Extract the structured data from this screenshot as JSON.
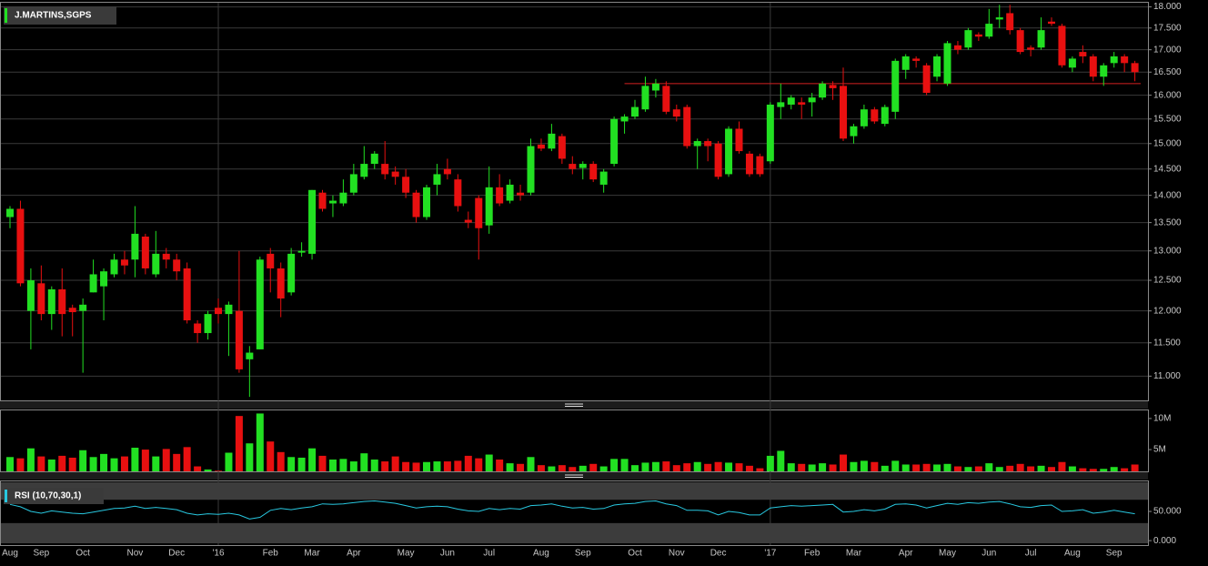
{
  "chart_data": [
    {
      "type": "candlestick",
      "title": "J.MARTINS,SGPS",
      "log_scale": true,
      "ylim": [
        10.65,
        18.1
      ],
      "yticks": [
        {
          "value": 11,
          "label": "11.000"
        },
        {
          "value": 11.5,
          "label": "11.500"
        },
        {
          "value": 12,
          "label": "12.000"
        },
        {
          "value": 12.5,
          "label": "12.500"
        },
        {
          "value": 13,
          "label": "13.000"
        },
        {
          "value": 13.5,
          "label": "13.500"
        },
        {
          "value": 14,
          "label": "14.000"
        },
        {
          "value": 14.5,
          "label": "14.500"
        },
        {
          "value": 15,
          "label": "15.000"
        },
        {
          "value": 15.5,
          "label": "15.500"
        },
        {
          "value": 16,
          "label": "16.000"
        },
        {
          "value": 16.5,
          "label": "16.500"
        },
        {
          "value": 17,
          "label": "17.000"
        },
        {
          "value": 17.5,
          "label": "17.500"
        },
        {
          "value": 18,
          "label": "18.000"
        }
      ],
      "grid": true,
      "year_lines": true,
      "up_color": "#22e022",
      "down_color": "#e81010",
      "support_line": {
        "value": 16.25,
        "start_index": 59,
        "color": "#d42020"
      },
      "categories": [
        "Aug",
        null,
        null,
        "Sep",
        null,
        null,
        null,
        "Oct",
        null,
        null,
        null,
        null,
        "Nov",
        null,
        null,
        null,
        "Dec",
        null,
        null,
        null,
        "'16",
        null,
        null,
        null,
        null,
        "Feb",
        null,
        null,
        null,
        "Mar",
        null,
        null,
        null,
        "Apr",
        null,
        null,
        null,
        null,
        "May",
        null,
        null,
        null,
        "Jun",
        null,
        null,
        null,
        "Jul",
        null,
        null,
        null,
        null,
        "Aug",
        null,
        null,
        null,
        "Sep",
        null,
        null,
        null,
        null,
        "Oct",
        null,
        null,
        null,
        "Nov",
        null,
        null,
        null,
        "Dec",
        null,
        null,
        null,
        null,
        "'17",
        null,
        null,
        null,
        "Feb",
        null,
        null,
        null,
        "Mar",
        null,
        null,
        null,
        null,
        "Apr",
        null,
        null,
        null,
        "May",
        null,
        null,
        null,
        "Jun",
        null,
        null,
        null,
        "Jul",
        null,
        null,
        null,
        "Aug",
        null,
        null,
        null,
        "Sep",
        null,
        null
      ],
      "open": [
        13.6,
        13.75,
        12.0,
        12.45,
        11.95,
        12.35,
        12.05,
        12.0,
        12.3,
        12.4,
        12.6,
        12.85,
        12.85,
        13.25,
        12.6,
        12.95,
        12.85,
        12.7,
        11.8,
        11.65,
        12.05,
        11.95,
        12.0,
        11.25,
        11.4,
        12.95,
        12.7,
        12.3,
        12.97,
        12.95,
        14.05,
        13.85,
        13.85,
        14.05,
        14.35,
        14.6,
        14.6,
        14.45,
        14.35,
        14.05,
        13.6,
        14.2,
        14.5,
        14.3,
        13.55,
        13.95,
        13.45,
        14.15,
        13.9,
        14.05,
        14.05,
        14.98,
        14.9,
        15.15,
        14.6,
        14.52,
        14.6,
        14.2,
        14.6,
        15.45,
        15.55,
        15.7,
        16.1,
        16.2,
        15.7,
        15.75,
        14.95,
        15.05,
        15.0,
        14.4,
        15.3,
        14.8,
        14.75,
        14.65,
        15.75,
        15.8,
        15.85,
        15.85,
        15.95,
        16.22,
        16.2,
        15.15,
        15.35,
        15.7,
        15.4,
        15.65,
        16.55,
        16.8,
        16.65,
        16.4,
        16.25,
        17.1,
        17.05,
        17.35,
        17.3,
        17.7,
        17.85,
        17.45,
        17.05,
        17.05,
        17.65,
        17.55,
        16.6,
        16.95,
        16.85,
        16.4,
        16.7,
        16.85,
        16.7
      ],
      "high": [
        13.8,
        13.9,
        12.7,
        12.75,
        12.4,
        12.7,
        12.1,
        12.2,
        12.85,
        12.7,
        12.95,
        13.0,
        13.8,
        13.3,
        13.35,
        13.05,
        12.95,
        12.8,
        11.85,
        12.0,
        12.2,
        12.15,
        13.0,
        11.45,
        12.9,
        13.05,
        12.8,
        13.05,
        13.15,
        14.1,
        14.1,
        14.0,
        14.3,
        14.6,
        14.95,
        14.85,
        15.05,
        14.55,
        14.5,
        14.1,
        14.2,
        14.6,
        14.7,
        14.4,
        13.7,
        14.0,
        14.55,
        14.4,
        14.3,
        14.2,
        15.1,
        15.1,
        15.4,
        15.2,
        14.75,
        14.65,
        14.65,
        14.5,
        15.55,
        15.6,
        15.9,
        16.4,
        16.35,
        16.3,
        15.8,
        15.8,
        15.1,
        15.1,
        15.05,
        15.35,
        15.45,
        14.85,
        14.8,
        15.85,
        16.25,
        16.0,
        15.95,
        16.05,
        16.3,
        16.3,
        16.6,
        15.4,
        15.8,
        15.75,
        15.8,
        16.8,
        16.9,
        16.85,
        16.7,
        16.9,
        17.2,
        17.2,
        17.5,
        17.4,
        17.95,
        18.05,
        18.05,
        17.5,
        17.1,
        17.75,
        17.75,
        17.6,
        16.85,
        17.1,
        16.9,
        16.7,
        16.95,
        16.9,
        16.75
      ],
      "low": [
        13.4,
        12.4,
        11.4,
        11.85,
        11.7,
        11.6,
        11.6,
        11.05,
        12.3,
        11.85,
        12.55,
        12.6,
        12.55,
        12.6,
        12.55,
        12.7,
        12.5,
        11.8,
        11.5,
        11.55,
        11.8,
        11.3,
        11.05,
        10.7,
        11.4,
        12.3,
        11.9,
        12.25,
        12.9,
        12.85,
        13.7,
        13.6,
        13.8,
        14.0,
        14.3,
        14.5,
        14.3,
        14.2,
        13.95,
        13.5,
        13.55,
        14.0,
        14.3,
        13.7,
        13.4,
        12.85,
        13.3,
        13.8,
        13.85,
        13.9,
        14.0,
        14.85,
        14.85,
        14.6,
        14.4,
        14.3,
        14.25,
        14.05,
        14.55,
        15.2,
        15.5,
        15.65,
        15.95,
        15.6,
        15.45,
        14.9,
        14.5,
        14.65,
        14.3,
        14.35,
        14.8,
        14.35,
        14.35,
        14.6,
        15.5,
        15.7,
        15.5,
        15.55,
        15.9,
        15.9,
        15.05,
        15.0,
        15.3,
        15.4,
        15.35,
        15.5,
        16.35,
        16.6,
        16.0,
        16.3,
        16.2,
        16.9,
        17.0,
        17.2,
        17.25,
        17.5,
        17.35,
        16.9,
        16.85,
        17.0,
        17.55,
        16.6,
        16.5,
        16.7,
        16.3,
        16.2,
        16.6,
        16.5,
        16.3
      ],
      "close": [
        13.75,
        12.45,
        12.5,
        11.95,
        12.35,
        11.95,
        11.98,
        12.1,
        12.6,
        12.65,
        12.85,
        12.75,
        13.3,
        12.7,
        12.95,
        12.85,
        12.65,
        11.85,
        11.65,
        11.95,
        11.95,
        12.1,
        11.1,
        11.35,
        12.85,
        12.7,
        12.2,
        12.95,
        13.0,
        14.1,
        13.75,
        13.9,
        14.05,
        14.4,
        14.6,
        14.8,
        14.4,
        14.35,
        14.05,
        13.6,
        14.15,
        14.4,
        14.4,
        13.8,
        13.5,
        13.4,
        14.15,
        13.85,
        14.2,
        14.0,
        14.95,
        14.9,
        15.2,
        14.7,
        14.5,
        14.6,
        14.3,
        14.45,
        15.5,
        15.55,
        15.75,
        16.2,
        16.25,
        15.65,
        15.55,
        14.95,
        15.05,
        14.95,
        14.35,
        15.3,
        14.85,
        14.4,
        14.4,
        15.8,
        15.85,
        15.95,
        15.8,
        15.95,
        16.25,
        16.15,
        15.1,
        15.35,
        15.7,
        15.45,
        15.75,
        16.75,
        16.85,
        16.75,
        16.05,
        16.85,
        17.15,
        17.0,
        17.45,
        17.3,
        17.6,
        17.75,
        17.45,
        16.95,
        17.0,
        17.45,
        17.6,
        16.65,
        16.8,
        16.85,
        16.4,
        16.65,
        16.85,
        16.7,
        16.5
      ]
    },
    {
      "type": "volume",
      "ylim": [
        1500000,
        11300000
      ],
      "yticks": [
        {
          "value": 10000000,
          "label": "10M"
        },
        {
          "value": 5000000,
          "label": "5M"
        }
      ],
      "values": [
        3800000,
        3600000,
        5200000,
        3900000,
        3400000,
        4000000,
        3700000,
        4900000,
        3800000,
        4300000,
        3600000,
        3900000,
        5300000,
        5000000,
        3900000,
        5100000,
        4300000,
        5400000,
        2300000,
        1800000,
        1600000,
        4500000,
        10400000,
        6000000,
        10800000,
        6300000,
        4600000,
        3800000,
        3700000,
        5200000,
        4000000,
        3400000,
        3500000,
        3100000,
        4400000,
        3400000,
        3100000,
        3900000,
        3000000,
        2900000,
        3000000,
        3100000,
        3100000,
        3200000,
        4000000,
        3600000,
        4200000,
        3400000,
        2800000,
        2700000,
        3800000,
        2500000,
        2300000,
        2500000,
        2200000,
        2400000,
        2700000,
        2300000,
        3500000,
        3500000,
        2500000,
        2900000,
        3000000,
        3100000,
        2500000,
        2800000,
        3000000,
        2700000,
        3000000,
        2900000,
        2800000,
        2400000,
        2000000,
        4000000,
        4800000,
        2800000,
        2700000,
        2600000,
        2800000,
        2600000,
        4200000,
        3000000,
        3200000,
        3000000,
        2400000,
        3200000,
        2600000,
        2600000,
        2700000,
        2600000,
        2700000,
        2300000,
        2200000,
        2300000,
        2800000,
        2200000,
        2400000,
        2700000,
        2300000,
        2400000,
        2200000,
        3000000,
        2300000,
        2000000,
        1900000,
        1900000,
        2200000,
        2000000,
        2600000
      ]
    },
    {
      "type": "rsi",
      "title": "RSI (10,70,30,1)",
      "ylim": [
        -7.6,
        101.5
      ],
      "overbought": 70,
      "oversold": 30,
      "color": "#28c8e0",
      "yticks": [
        {
          "value": 50,
          "label": "50.000"
        },
        {
          "value": 0,
          "label": "0.000"
        }
      ],
      "values": [
        62,
        58,
        50,
        47,
        51,
        49,
        47,
        46,
        49,
        52,
        55,
        56,
        59,
        55,
        57,
        55,
        53,
        47,
        44,
        46,
        45,
        47,
        44,
        37,
        40,
        52,
        55,
        53,
        56,
        58,
        63,
        62,
        63,
        65,
        67,
        68,
        66,
        64,
        60,
        56,
        58,
        59,
        58,
        54,
        51,
        50,
        55,
        53,
        55,
        54,
        60,
        61,
        63,
        59,
        56,
        57,
        54,
        55,
        61,
        63,
        64,
        67,
        68,
        63,
        60,
        52,
        52,
        51,
        44,
        50,
        48,
        44,
        44,
        56,
        58,
        60,
        59,
        60,
        61,
        62,
        49,
        50,
        53,
        51,
        54,
        62,
        63,
        61,
        56,
        60,
        64,
        62,
        65,
        64,
        66,
        67,
        63,
        58,
        57,
        60,
        61,
        50,
        51,
        53,
        47,
        49,
        52,
        49,
        46
      ]
    }
  ]
}
